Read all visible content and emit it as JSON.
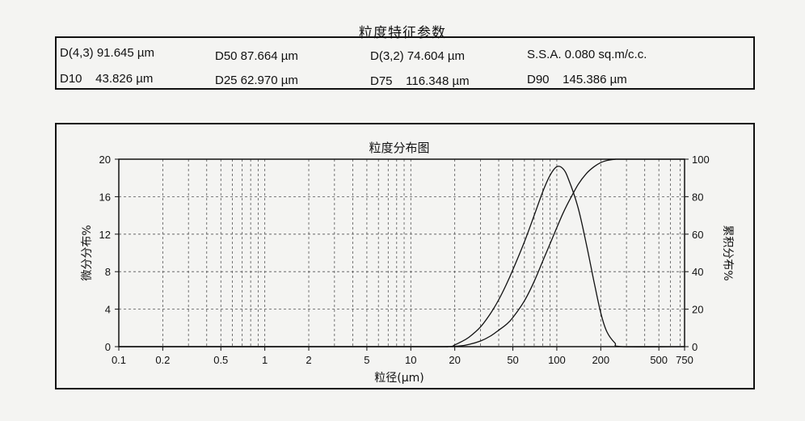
{
  "header": {
    "title": "粒度特征参数"
  },
  "params": {
    "d43": "D(4,3) 91.645 µm",
    "d50": "D50 87.664 µm",
    "d32": "D(3,2) 74.604 µm",
    "ssa": "S.S.A. 0.080 sq.m/c.c.",
    "d10": "D10    43.826 µm",
    "d25": "D25 62.970 µm",
    "d75": "D75    116.348 µm",
    "d90": "D90    145.386 µm"
  },
  "chart_data": {
    "type": "line",
    "title": "粒度分布图",
    "xlabel": "粒径(µm)",
    "ylabel": "微分分布%",
    "y2label": "累积分布%",
    "xscale": "log",
    "xlim": [
      0.1,
      750
    ],
    "ylim": [
      0,
      20
    ],
    "y2lim": [
      0,
      100
    ],
    "grid": true,
    "x_ticks": [
      0.1,
      0.2,
      0.5,
      1,
      2,
      5,
      10,
      20,
      50,
      100,
      200,
      500,
      750
    ],
    "x_tick_labels": [
      "0.1",
      "0.2",
      "0.5",
      "1",
      "2",
      "5",
      "10",
      "20",
      "50",
      "100",
      "200",
      "500",
      "750"
    ],
    "y_ticks": [
      0,
      4,
      8,
      12,
      16,
      20
    ],
    "y_tick_labels": [
      "0",
      "4",
      "8",
      "12",
      "16",
      "20"
    ],
    "y2_ticks": [
      0,
      20,
      40,
      60,
      80,
      100
    ],
    "y2_tick_labels": [
      "0",
      "20",
      "40",
      "60",
      "80",
      "100"
    ],
    "series": [
      {
        "role": "differential",
        "axis": "left",
        "x": [
          0.1,
          10,
          18,
          20,
          22,
          25,
          30,
          35,
          40,
          45,
          50,
          60,
          70,
          80,
          90,
          100,
          110,
          120,
          140,
          160,
          180,
          200,
          220,
          250,
          280,
          750
        ],
        "y": [
          0,
          0,
          0,
          0.2,
          0.5,
          1.0,
          2.1,
          3.5,
          5.0,
          6.6,
          8.2,
          11.2,
          14.0,
          16.5,
          18.3,
          19.2,
          19.0,
          17.9,
          14.8,
          10.8,
          6.9,
          3.6,
          1.6,
          0.4,
          0,
          0
        ]
      },
      {
        "role": "cumulative",
        "axis": "right",
        "x": [
          0.1,
          10,
          20,
          25,
          30,
          35,
          40,
          45,
          50,
          60,
          70,
          80,
          90,
          100,
          110,
          120,
          140,
          160,
          180,
          200,
          220,
          250,
          280,
          750
        ],
        "y": [
          0,
          0,
          0.2,
          1.2,
          3.0,
          5.6,
          8.8,
          11.8,
          15.5,
          24.5,
          34.8,
          45.5,
          55.0,
          63.5,
          71.0,
          77.0,
          86.5,
          92.5,
          96.0,
          98.2,
          99.3,
          99.9,
          100,
          100
        ]
      }
    ]
  }
}
